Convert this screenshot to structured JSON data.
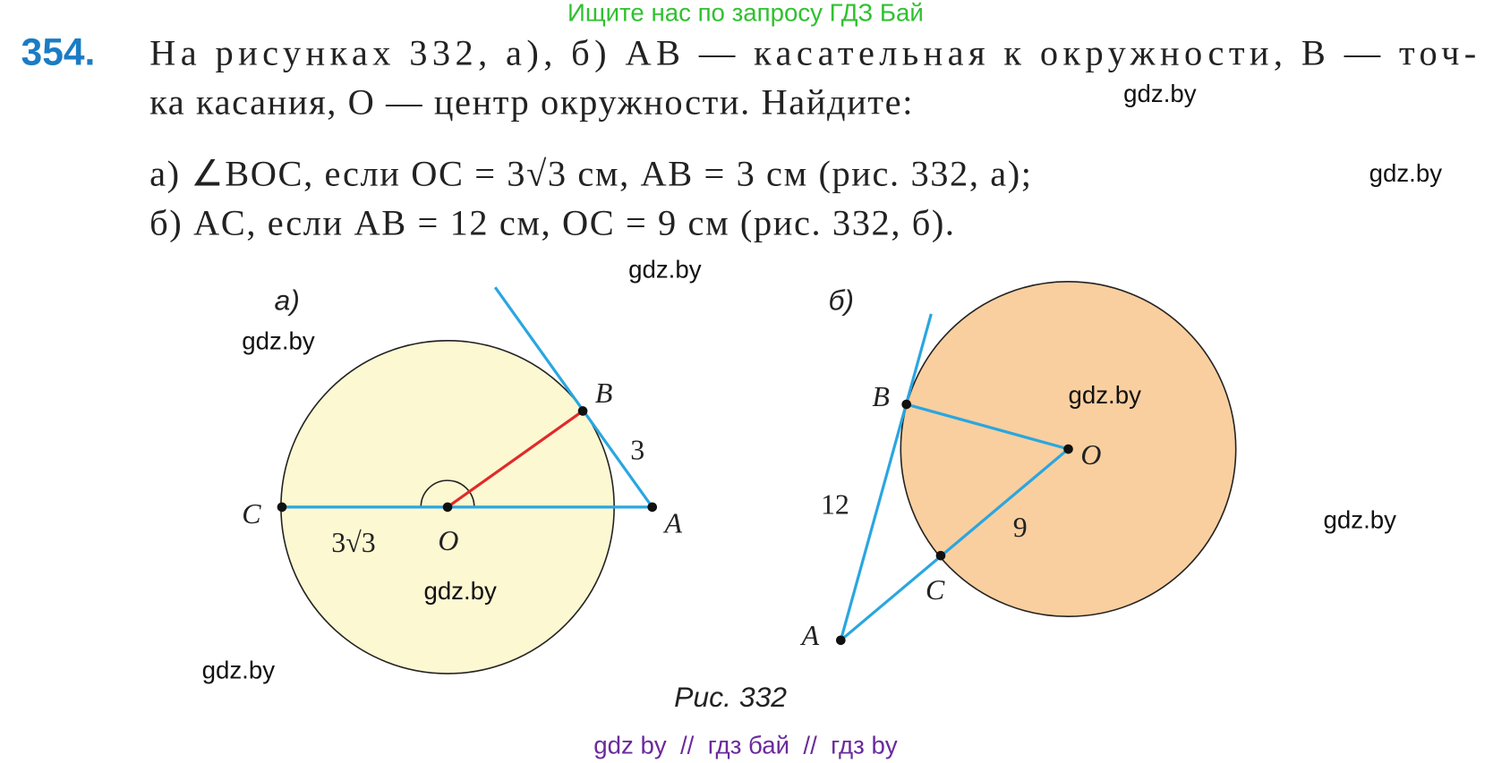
{
  "banner": "Ищите нас по запросу ГДЗ Бай",
  "problem": {
    "number": "354.",
    "lines": [
      "На рисунках 332, а), б) AB — касательная к окружности, B — точ-",
      "ка касания, O — центр окружности. Найдите:"
    ],
    "parts": [
      "а) ∠BOC, если OC = 3√3  см, AB = 3 см (рис. 332, а);",
      "б) AC, если AB = 12 см, OC = 9 см (рис. 332, б)."
    ]
  },
  "figures": [
    {
      "label": "а)",
      "B": "B",
      "AB": "3",
      "C": "C",
      "OC": "3√3",
      "O": "O",
      "A": "A"
    },
    {
      "label": "б)",
      "B": "B",
      "O": "O",
      "AB": "12",
      "OC": "9",
      "C": "C",
      "A": "A"
    }
  ],
  "watermarks": [
    "gdz.by",
    "gdz.by",
    "gdz.by",
    "gdz.by",
    "gdz.by",
    "gdz.by",
    "gdz.by",
    "gdz.by"
  ],
  "caption": "Рис. 332",
  "footer": "gdz by  //  гдз бай  //  гдз by"
}
